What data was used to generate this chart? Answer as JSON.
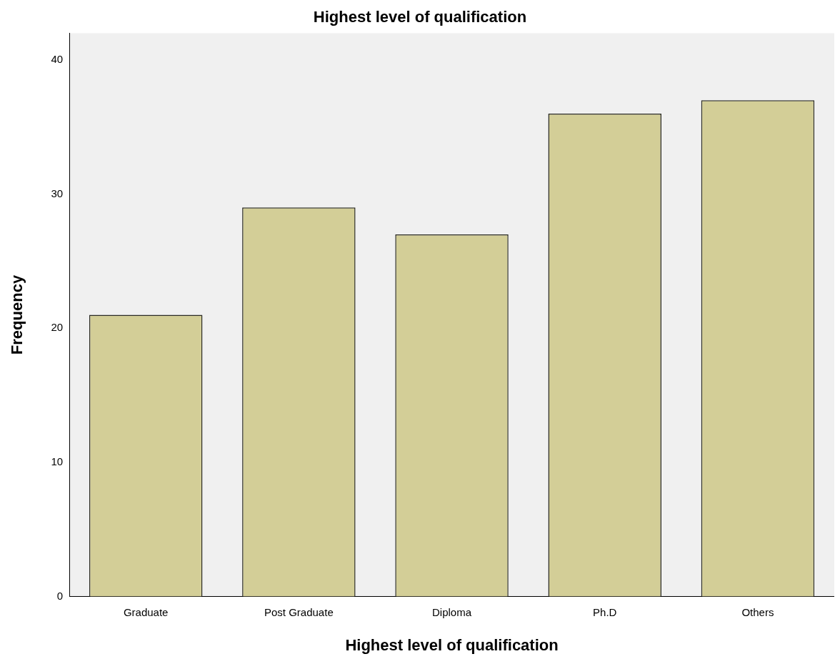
{
  "chart_data": {
    "type": "bar",
    "title": "Highest level of qualification",
    "xlabel": "Highest level of qualification",
    "ylabel": "Frequency",
    "categories": [
      "Graduate",
      "Post Graduate",
      "Diploma",
      "Ph.D",
      "Others"
    ],
    "values": [
      21,
      29,
      27,
      36,
      37
    ],
    "color": "#d3ce97",
    "ylim": [
      0,
      42
    ],
    "yticks": [
      0,
      10,
      20,
      30,
      40
    ],
    "grid": false,
    "legend": false
  }
}
